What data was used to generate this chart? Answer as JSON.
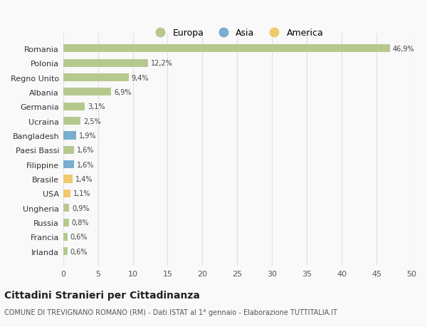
{
  "countries": [
    "Romania",
    "Polonia",
    "Regno Unito",
    "Albania",
    "Germania",
    "Ucraina",
    "Bangladesh",
    "Paesi Bassi",
    "Filippine",
    "Brasile",
    "USA",
    "Ungheria",
    "Russia",
    "Francia",
    "Irlanda"
  ],
  "values": [
    46.9,
    12.2,
    9.4,
    6.9,
    3.1,
    2.5,
    1.9,
    1.6,
    1.6,
    1.4,
    1.1,
    0.9,
    0.8,
    0.6,
    0.6
  ],
  "labels": [
    "46,9%",
    "12,2%",
    "9,4%",
    "6,9%",
    "3,1%",
    "2,5%",
    "1,9%",
    "1,6%",
    "1,6%",
    "1,4%",
    "1,1%",
    "0,9%",
    "0,8%",
    "0,6%",
    "0,6%"
  ],
  "continents": [
    "Europa",
    "Europa",
    "Europa",
    "Europa",
    "Europa",
    "Europa",
    "Asia",
    "Europa",
    "Asia",
    "America",
    "America",
    "Europa",
    "Europa",
    "Europa",
    "Europa"
  ],
  "color_europa": "#b5c98e",
  "color_asia": "#7aadcf",
  "color_america": "#f0c96e",
  "title": "Cittadini Stranieri per Cittadinanza",
  "subtitle": "COMUNE DI TREVIGNANO ROMANO (RM) - Dati ISTAT al 1° gennaio - Elaborazione TUTTITALIA.IT",
  "xlim": [
    0,
    50
  ],
  "xticks": [
    0,
    5,
    10,
    15,
    20,
    25,
    30,
    35,
    40,
    45,
    50
  ],
  "background_color": "#f9f9f9",
  "grid_color": "#e0e0e0"
}
